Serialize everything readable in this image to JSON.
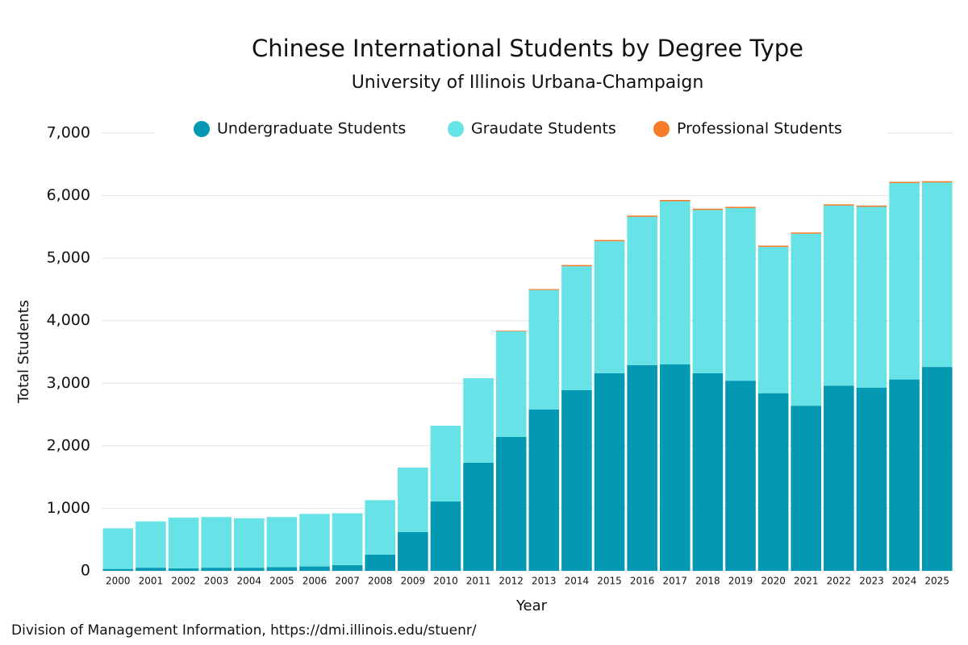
{
  "chart_data": {
    "type": "stacked-bar",
    "title": "Chinese International Students by Degree Type",
    "subtitle": "University of Illinois Urbana-Champaign",
    "x_label": "Year",
    "y_label": "Total Students",
    "source": "Division of Management Information, https://dmi.illinois.edu/stuenr/",
    "categories": [
      "2000",
      "2001",
      "2002",
      "2003",
      "2004",
      "2005",
      "2006",
      "2007",
      "2008",
      "2009",
      "2010",
      "2011",
      "2012",
      "2013",
      "2014",
      "2015",
      "2016",
      "2017",
      "2018",
      "2019",
      "2020",
      "2021",
      "2022",
      "2023",
      "2024",
      "2025"
    ],
    "series": [
      {
        "name": "Undergraduate Students",
        "color": "#0399b3",
        "values": [
          30,
          50,
          40,
          50,
          50,
          60,
          70,
          90,
          260,
          620,
          1110,
          1730,
          2140,
          2580,
          2890,
          3160,
          3290,
          3300,
          3160,
          3040,
          2840,
          2640,
          2960,
          2930,
          3060,
          3260
        ]
      },
      {
        "name": "Graudate Students",
        "color": "#67e3e8",
        "values": [
          650,
          740,
          810,
          810,
          790,
          800,
          840,
          830,
          870,
          1030,
          1210,
          1350,
          1690,
          1910,
          1980,
          2110,
          2370,
          2610,
          2610,
          2760,
          2340,
          2750,
          2880,
          2890,
          3140,
          2950
        ]
      },
      {
        "name": "Professional Students",
        "color": "#f47c2a",
        "values": [
          0,
          0,
          0,
          0,
          0,
          0,
          0,
          0,
          0,
          0,
          0,
          0,
          10,
          15,
          20,
          20,
          20,
          20,
          20,
          20,
          20,
          20,
          20,
          20,
          20,
          20
        ]
      }
    ],
    "ylim": [
      0,
      7000
    ],
    "yticks": [
      0,
      {
        "value": 1000,
        "label": "1,000"
      },
      {
        "value": 2000,
        "label": "2,000"
      },
      {
        "value": 3000,
        "label": "3,000"
      },
      {
        "value": 4000,
        "label": "4,000"
      },
      {
        "value": 5000,
        "label": "5,000"
      },
      {
        "value": 6000,
        "label": "6,000"
      },
      {
        "value": 7000,
        "label": "7,000"
      }
    ],
    "grid": true,
    "legend": "top"
  }
}
